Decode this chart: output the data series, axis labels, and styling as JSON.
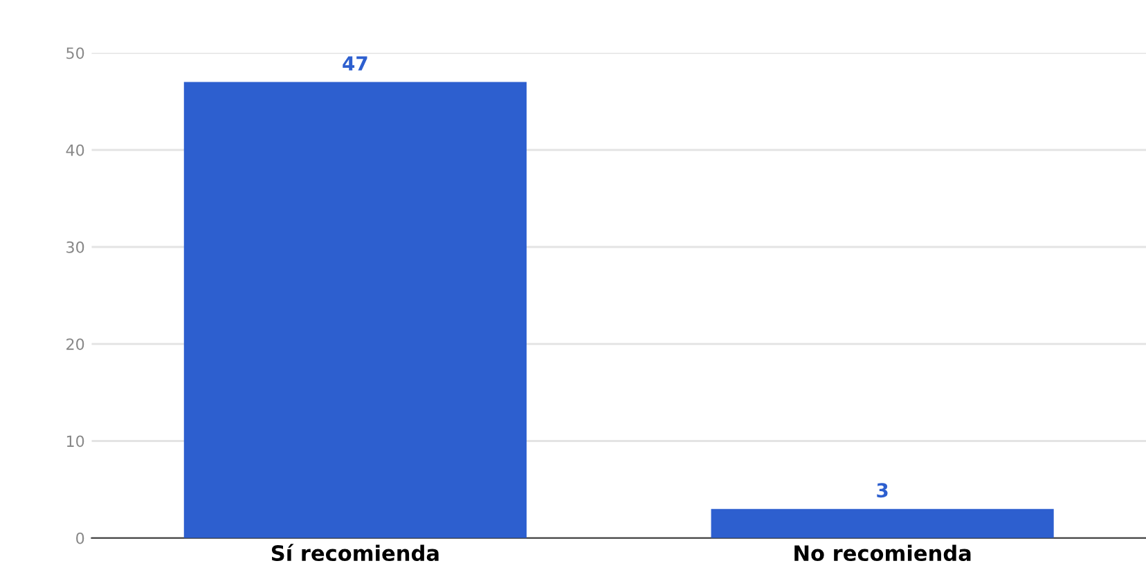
{
  "chart_data": {
    "type": "bar",
    "categories": [
      "Sí recomienda",
      "No recomienda"
    ],
    "values": [
      47,
      3
    ],
    "color": "#2d5fcf",
    "ylim": [
      0,
      50
    ],
    "yticks": [
      0,
      10,
      20,
      30,
      40,
      50
    ],
    "grid": "y",
    "data_labels": true
  }
}
